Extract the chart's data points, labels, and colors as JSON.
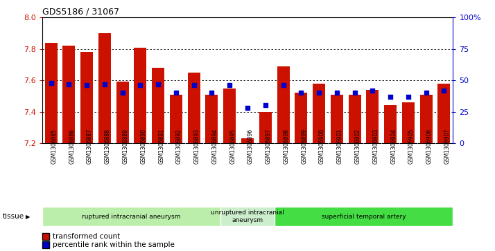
{
  "title": "GDS5186 / 31067",
  "samples": [
    "GSM1306885",
    "GSM1306886",
    "GSM1306887",
    "GSM1306888",
    "GSM1306889",
    "GSM1306890",
    "GSM1306891",
    "GSM1306892",
    "GSM1306893",
    "GSM1306894",
    "GSM1306895",
    "GSM1306896",
    "GSM1306897",
    "GSM1306898",
    "GSM1306899",
    "GSM1306900",
    "GSM1306901",
    "GSM1306902",
    "GSM1306903",
    "GSM1306904",
    "GSM1306905",
    "GSM1306906",
    "GSM1306907"
  ],
  "red_values": [
    7.84,
    7.82,
    7.78,
    7.9,
    7.59,
    7.81,
    7.68,
    7.51,
    7.65,
    7.51,
    7.55,
    7.23,
    7.4,
    7.69,
    7.52,
    7.58,
    7.51,
    7.51,
    7.54,
    7.44,
    7.46,
    7.51,
    7.58
  ],
  "blue_percentiles": [
    48,
    47,
    46,
    47,
    40,
    46,
    47,
    40,
    46,
    40,
    46,
    28,
    30,
    46,
    40,
    40,
    40,
    40,
    42,
    37,
    37,
    40,
    42
  ],
  "ylim_left": [
    7.2,
    8.0
  ],
  "ylim_right": [
    0,
    100
  ],
  "yticks_left": [
    7.2,
    7.4,
    7.6,
    7.8,
    8.0
  ],
  "yticks_right": [
    0,
    25,
    50,
    75,
    100
  ],
  "ytick_labels_right": [
    "0",
    "25",
    "50",
    "75",
    "100%"
  ],
  "bar_color": "#cc1100",
  "blue_color": "#0000cc",
  "baseline": 7.2,
  "groups": [
    {
      "label": "ruptured intracranial aneurysm",
      "start": 0,
      "end": 10,
      "color": "#bbeeaa"
    },
    {
      "label": "unruptured intracranial\naneurysm",
      "start": 10,
      "end": 13,
      "color": "#cceecc"
    },
    {
      "label": "superficial temporal artery",
      "start": 13,
      "end": 23,
      "color": "#44dd44"
    }
  ],
  "tissue_label": "tissue",
  "legend_items": [
    {
      "label": "transformed count",
      "color": "#cc1100"
    },
    {
      "label": "percentile rank within the sample",
      "color": "#0000cc"
    }
  ],
  "plot_bg": "#ffffff",
  "xtick_bg": "#d0d0d0"
}
